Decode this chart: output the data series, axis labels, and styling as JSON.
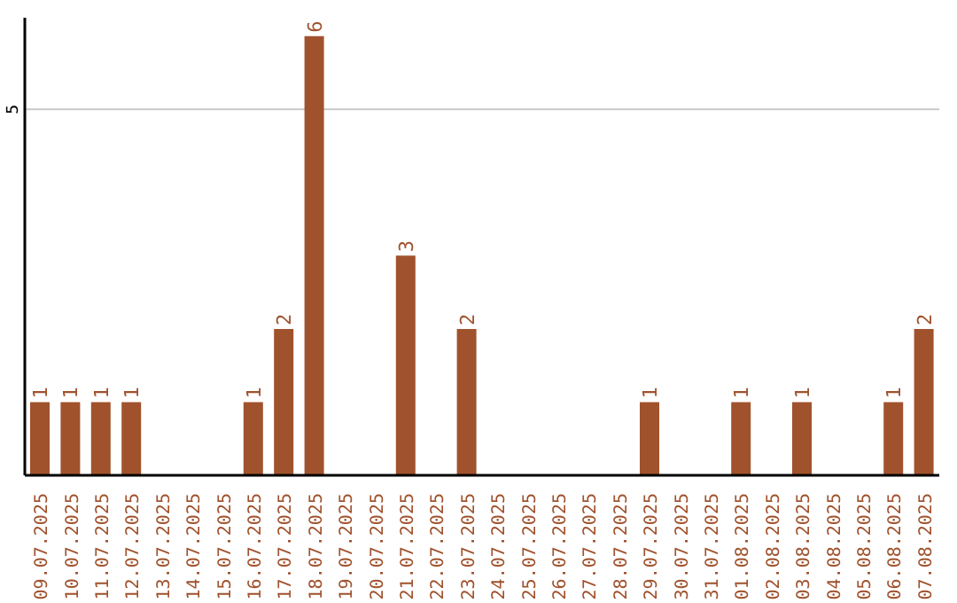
{
  "chart_data": {
    "type": "bar",
    "categories": [
      "09.07.2025",
      "10.07.2025",
      "11.07.2025",
      "12.07.2025",
      "13.07.2025",
      "14.07.2025",
      "15.07.2025",
      "16.07.2025",
      "17.07.2025",
      "18.07.2025",
      "19.07.2025",
      "20.07.2025",
      "21.07.2025",
      "22.07.2025",
      "23.07.2025",
      "24.07.2025",
      "25.07.2025",
      "26.07.2025",
      "27.07.2025",
      "28.07.2025",
      "29.07.2025",
      "30.07.2025",
      "31.07.2025",
      "01.08.2025",
      "02.08.2025",
      "03.08.2025",
      "04.08.2025",
      "05.08.2025",
      "06.08.2025",
      "07.08.2025"
    ],
    "values": [
      1,
      1,
      1,
      1,
      0,
      0,
      0,
      1,
      2,
      6,
      0,
      0,
      3,
      0,
      2,
      0,
      0,
      0,
      0,
      0,
      1,
      0,
      0,
      1,
      0,
      1,
      0,
      0,
      1,
      2
    ],
    "value_labels": [
      "1",
      "1",
      "1",
      "1",
      null,
      null,
      null,
      "1",
      "2",
      "6",
      null,
      null,
      "3",
      null,
      "2",
      null,
      null,
      null,
      null,
      null,
      "1",
      null,
      null,
      "1",
      null,
      "1",
      null,
      null,
      "1",
      "2"
    ],
    "color": "#a0522d",
    "ylim": [
      0,
      6.25
    ],
    "yticks": [
      5
    ],
    "grid": "y"
  }
}
